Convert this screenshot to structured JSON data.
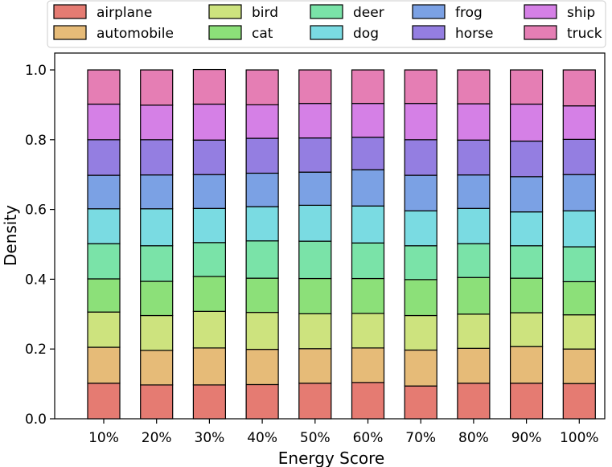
{
  "chart_data": {
    "type": "bar",
    "stacked": true,
    "xlabel": "Energy Score",
    "ylabel": "Density",
    "ylim": [
      0,
      1.0
    ],
    "yticks": [
      "0.0",
      "0.2",
      "0.4",
      "0.6",
      "0.8",
      "1.0"
    ],
    "categories": [
      "10%",
      "20%",
      "30%",
      "40%",
      "50%",
      "60%",
      "70%",
      "80%",
      "90%",
      "100%"
    ],
    "legend_position": "top",
    "grid": false,
    "series": [
      {
        "name": "airplane",
        "color": "#e57b72",
        "values": [
          0.102,
          0.097,
          0.097,
          0.098,
          0.102,
          0.104,
          0.094,
          0.102,
          0.102,
          0.101
        ]
      },
      {
        "name": "automobile",
        "color": "#e6bb78",
        "values": [
          0.103,
          0.099,
          0.106,
          0.101,
          0.099,
          0.099,
          0.103,
          0.1,
          0.105,
          0.099
        ]
      },
      {
        "name": "bird",
        "color": "#cde37e",
        "values": [
          0.101,
          0.1,
          0.105,
          0.106,
          0.1,
          0.099,
          0.099,
          0.098,
          0.097,
          0.098
        ]
      },
      {
        "name": "cat",
        "color": "#8ce079",
        "values": [
          0.095,
          0.098,
          0.1,
          0.098,
          0.101,
          0.1,
          0.103,
          0.105,
          0.099,
          0.095
        ]
      },
      {
        "name": "deer",
        "color": "#7ae3a8",
        "values": [
          0.101,
          0.102,
          0.097,
          0.107,
          0.107,
          0.102,
          0.097,
          0.097,
          0.093,
          0.1
        ]
      },
      {
        "name": "dog",
        "color": "#7adbe2",
        "values": [
          0.1,
          0.106,
          0.098,
          0.098,
          0.103,
          0.106,
          0.1,
          0.101,
          0.097,
          0.103
        ]
      },
      {
        "name": "frog",
        "color": "#7ba1e4",
        "values": [
          0.096,
          0.097,
          0.097,
          0.096,
          0.095,
          0.104,
          0.102,
          0.096,
          0.101,
          0.104
        ]
      },
      {
        "name": "horse",
        "color": "#947ee1",
        "values": [
          0.102,
          0.101,
          0.099,
          0.1,
          0.098,
          0.093,
          0.102,
          0.1,
          0.102,
          0.101
        ]
      },
      {
        "name": "ship",
        "color": "#d580e6",
        "values": [
          0.102,
          0.099,
          0.103,
          0.096,
          0.099,
          0.097,
          0.104,
          0.104,
          0.106,
          0.096
        ]
      },
      {
        "name": "truck",
        "color": "#e57eb4",
        "values": [
          0.098,
          0.101,
          0.099,
          0.1,
          0.096,
          0.096,
          0.096,
          0.097,
          0.098,
          0.103
        ]
      }
    ]
  }
}
